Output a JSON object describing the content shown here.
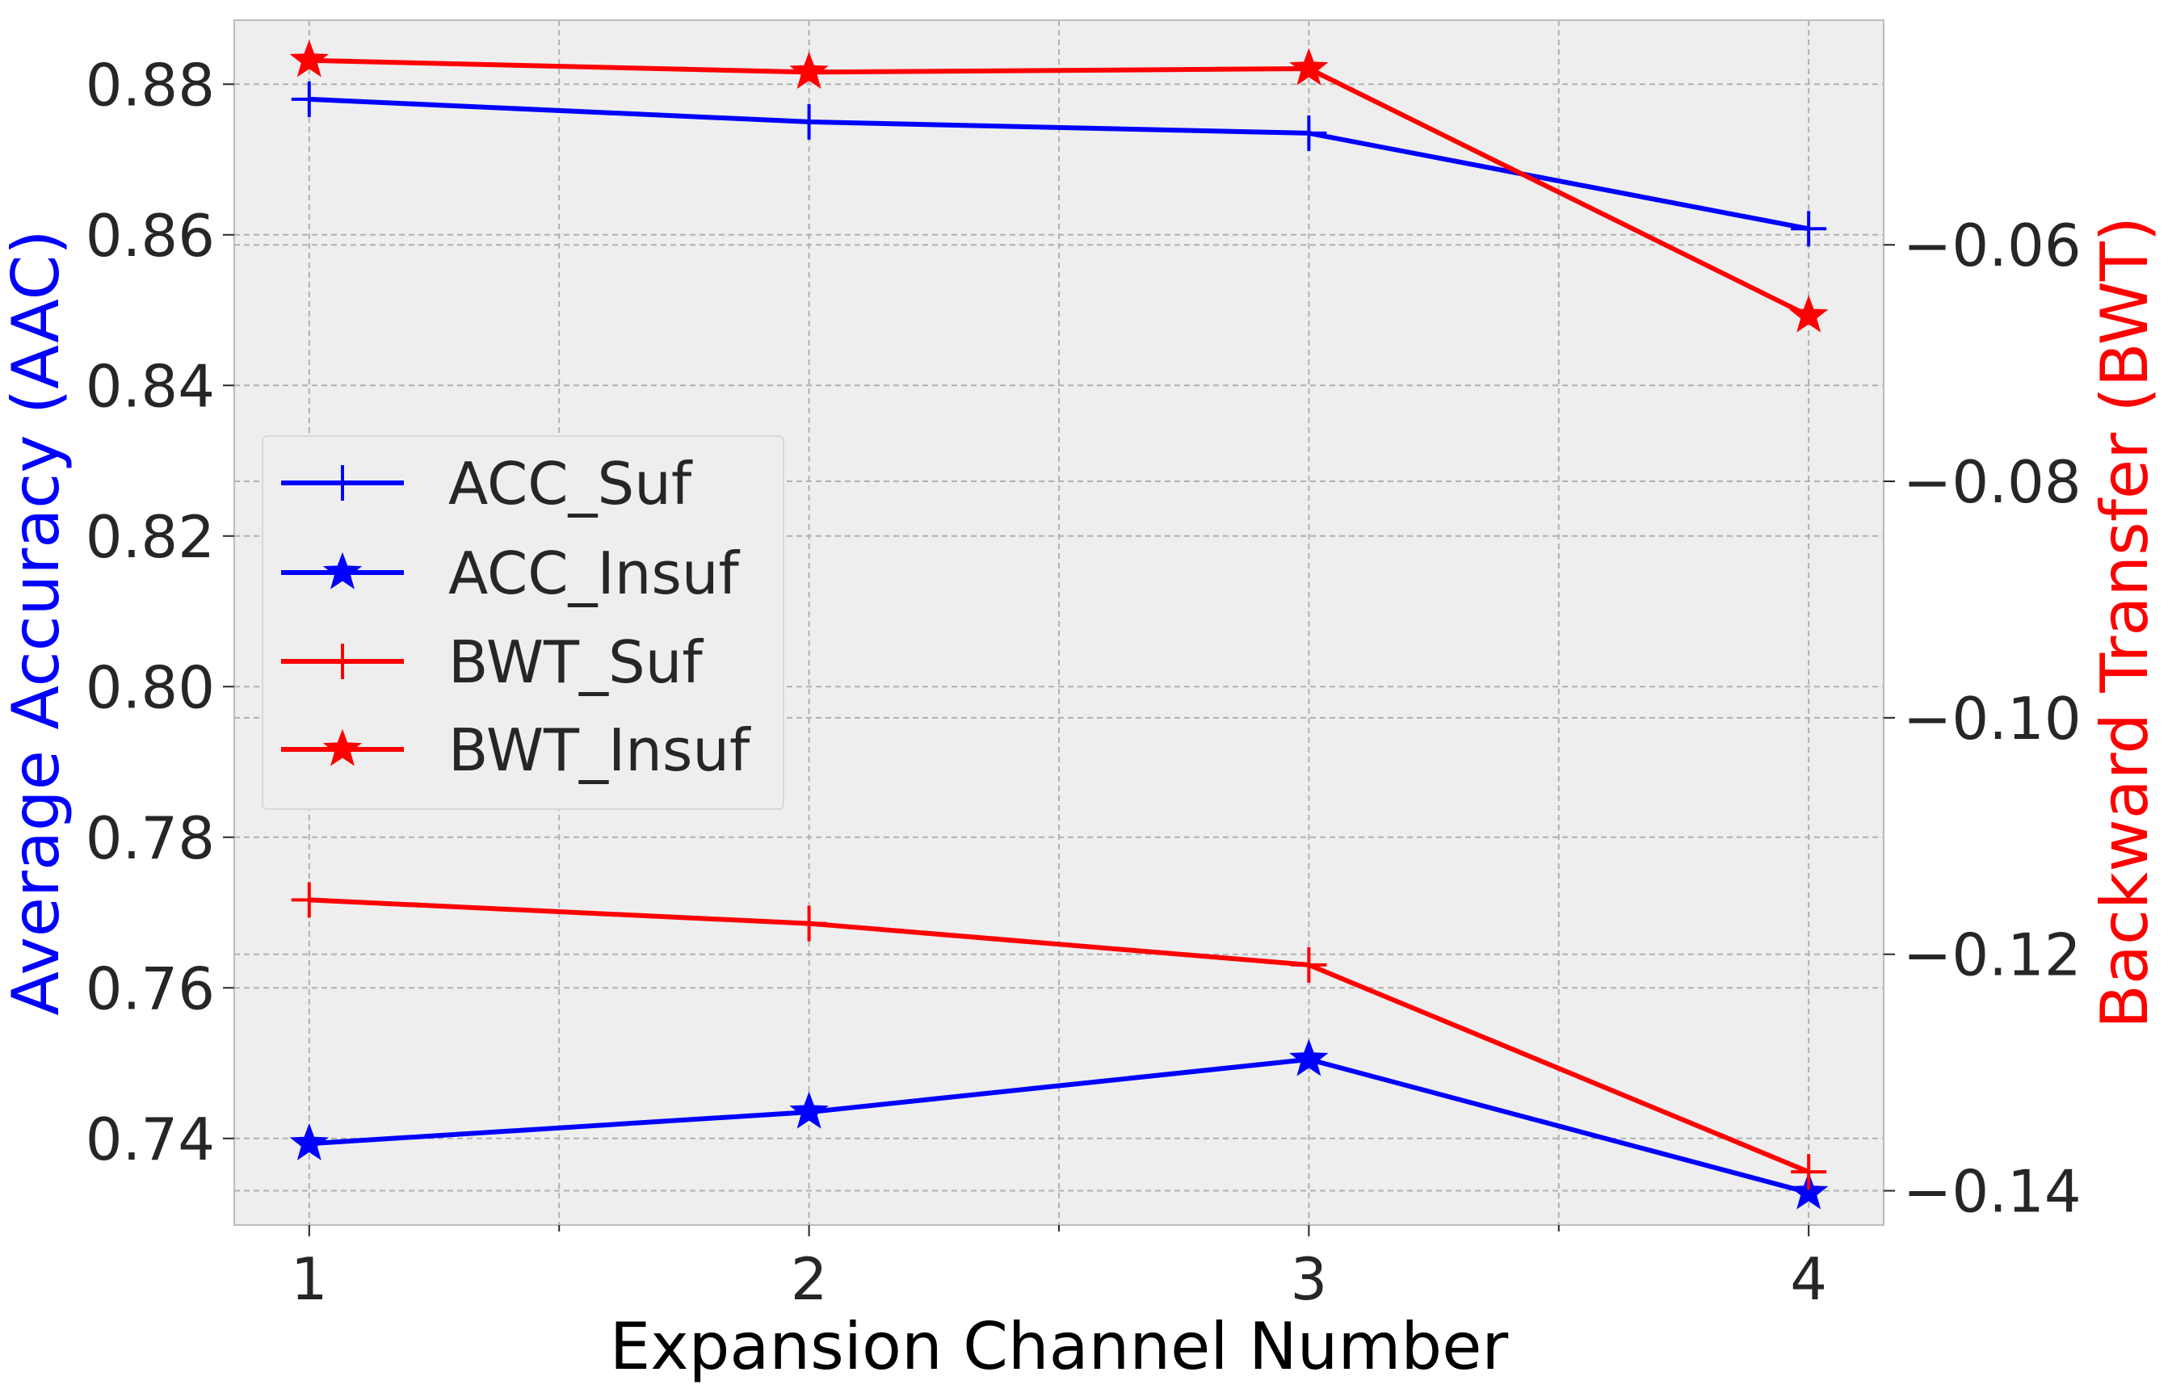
{
  "chart_data": {
    "type": "line",
    "title": "",
    "xlabel": "Expansion Channel Number",
    "ylabel_left": "Average Accuracy (AAC)",
    "ylabel_right": "Backward Transfer (BWT)",
    "x": [
      1,
      2,
      3,
      4
    ],
    "x_ticks": [
      "1",
      "2",
      "3",
      "4"
    ],
    "xlim": [
      0.85,
      4.15
    ],
    "ylim_left": [
      0.7285,
      0.8885
    ],
    "ylim_right": [
      -0.1429,
      -0.041
    ],
    "left_ticks": [
      "0.74",
      "0.76",
      "0.78",
      "0.80",
      "0.82",
      "0.84",
      "0.86",
      "0.88"
    ],
    "left_tick_values": [
      0.74,
      0.76,
      0.78,
      0.8,
      0.82,
      0.84,
      0.86,
      0.88
    ],
    "right_ticks": [
      "−0.06",
      "−0.08",
      "−0.10",
      "−0.12",
      "−0.14"
    ],
    "right_tick_values": [
      -0.06,
      -0.08,
      -0.1,
      -0.12,
      -0.14
    ],
    "grid": true,
    "legend_position": "center-left",
    "series": [
      {
        "name": "ACC_Suf",
        "axis": "left",
        "color": "#0000ff",
        "marker": "plus",
        "values": [
          0.878,
          0.875,
          0.8735,
          0.8608
        ]
      },
      {
        "name": "ACC_Insuf",
        "axis": "left",
        "color": "#0000ff",
        "marker": "star",
        "values": [
          0.7393,
          0.7435,
          0.7505,
          0.7328
        ]
      },
      {
        "name": "BWT_Suf",
        "axis": "right",
        "color": "#ff0000",
        "marker": "plus",
        "values": [
          -0.1154,
          -0.1174,
          -0.1209,
          -0.1384
        ]
      },
      {
        "name": "BWT_Insuf",
        "axis": "right",
        "color": "#ff0000",
        "marker": "star",
        "values": [
          -0.0444,
          -0.0454,
          -0.0451,
          -0.066
        ]
      }
    ]
  }
}
